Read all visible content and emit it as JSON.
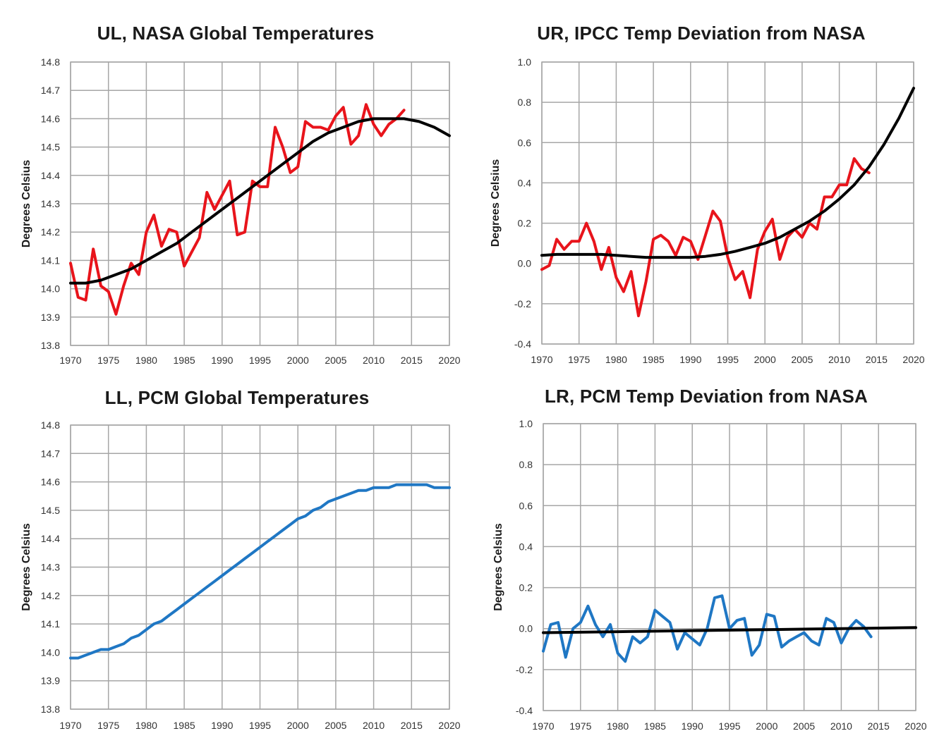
{
  "chart_data": [
    {
      "id": "ul",
      "type": "line",
      "title": "UL, NASA Global Temperatures",
      "ylabel": "Degrees Celsius",
      "xlabel": "",
      "xlim": [
        1970,
        2020
      ],
      "ylim": [
        13.8,
        14.8
      ],
      "xticks": [
        "1970",
        "1975",
        "1980",
        "1985",
        "1990",
        "1995",
        "2000",
        "2005",
        "2010",
        "2015",
        "2020"
      ],
      "yticks": [
        "14.8",
        "14.7",
        "14.6",
        "14.5",
        "14.4",
        "14.3",
        "14.2",
        "14.1",
        "14.0",
        "13.9",
        "13.8"
      ],
      "grid": true,
      "series": [
        {
          "color": "#e8141b",
          "x": [
            1970,
            1971,
            1972,
            1973,
            1974,
            1975,
            1976,
            1977,
            1978,
            1979,
            1980,
            1981,
            1982,
            1983,
            1984,
            1985,
            1986,
            1987,
            1988,
            1989,
            1990,
            1991,
            1992,
            1993,
            1994,
            1995,
            1996,
            1997,
            1998,
            1999,
            2000,
            2001,
            2002,
            2003,
            2004,
            2005,
            2006,
            2007,
            2008,
            2009,
            2010,
            2011,
            2012,
            2013,
            2014
          ],
          "y": [
            14.09,
            13.97,
            13.96,
            14.14,
            14.01,
            13.99,
            13.91,
            14.01,
            14.09,
            14.05,
            14.2,
            14.26,
            14.15,
            14.21,
            14.2,
            14.08,
            14.13,
            14.18,
            14.34,
            14.28,
            14.33,
            14.38,
            14.19,
            14.2,
            14.38,
            14.36,
            14.36,
            14.57,
            14.5,
            14.41,
            14.43,
            14.59,
            14.57,
            14.57,
            14.56,
            14.61,
            14.64,
            14.51,
            14.54,
            14.65,
            14.58,
            14.54,
            14.58,
            14.6,
            14.63
          ]
        },
        {
          "color": "#000000",
          "x": [
            1970,
            1972,
            1974,
            1976,
            1978,
            1980,
            1982,
            1984,
            1986,
            1988,
            1990,
            1992,
            1994,
            1996,
            1998,
            2000,
            2002,
            2004,
            2006,
            2008,
            2010,
            2012,
            2014,
            2016,
            2018,
            2020
          ],
          "y": [
            14.02,
            14.02,
            14.03,
            14.05,
            14.07,
            14.1,
            14.13,
            14.16,
            14.2,
            14.24,
            14.28,
            14.32,
            14.36,
            14.4,
            14.44,
            14.48,
            14.52,
            14.55,
            14.57,
            14.59,
            14.6,
            14.6,
            14.6,
            14.59,
            14.57,
            14.54
          ]
        }
      ]
    },
    {
      "id": "ur",
      "type": "line",
      "title": "UR, IPCC Temp Deviation from NASA",
      "ylabel": "Degrees Celsius",
      "xlabel": "",
      "xlim": [
        1970,
        2020
      ],
      "ylim": [
        -0.4,
        1.0
      ],
      "xticks": [
        "1970",
        "1975",
        "1980",
        "1985",
        "1990",
        "1995",
        "2000",
        "2005",
        "2010",
        "2015",
        "2020"
      ],
      "yticks": [
        "1.0",
        "0.8",
        "0.6",
        "0.4",
        "0.2",
        "0.0",
        "-0.2",
        "-0.4"
      ],
      "grid": true,
      "series": [
        {
          "color": "#e8141b",
          "x": [
            1970,
            1971,
            1972,
            1973,
            1974,
            1975,
            1976,
            1977,
            1978,
            1979,
            1980,
            1981,
            1982,
            1983,
            1984,
            1985,
            1986,
            1987,
            1988,
            1989,
            1990,
            1991,
            1992,
            1993,
            1994,
            1995,
            1996,
            1997,
            1998,
            1999,
            2000,
            2001,
            2002,
            2003,
            2004,
            2005,
            2006,
            2007,
            2008,
            2009,
            2010,
            2011,
            2012,
            2013,
            2014
          ],
          "y": [
            -0.03,
            -0.01,
            0.12,
            0.07,
            0.11,
            0.11,
            0.2,
            0.11,
            -0.03,
            0.08,
            -0.07,
            -0.14,
            -0.04,
            -0.26,
            -0.09,
            0.12,
            0.14,
            0.11,
            0.04,
            0.13,
            0.11,
            0.02,
            0.14,
            0.26,
            0.21,
            0.03,
            -0.08,
            -0.04,
            -0.17,
            0.07,
            0.16,
            0.22,
            0.02,
            0.13,
            0.17,
            0.13,
            0.2,
            0.17,
            0.33,
            0.33,
            0.39,
            0.39,
            0.52,
            0.47,
            0.45
          ]
        },
        {
          "color": "#000000",
          "x": [
            1970,
            1972,
            1974,
            1976,
            1978,
            1980,
            1982,
            1984,
            1986,
            1988,
            1990,
            1992,
            1994,
            1996,
            1998,
            2000,
            2002,
            2004,
            2006,
            2008,
            2010,
            2012,
            2014,
            2016,
            2018,
            2020
          ],
          "y": [
            0.04,
            0.045,
            0.045,
            0.045,
            0.045,
            0.04,
            0.035,
            0.03,
            0.03,
            0.03,
            0.03,
            0.035,
            0.045,
            0.06,
            0.08,
            0.1,
            0.13,
            0.17,
            0.21,
            0.26,
            0.32,
            0.39,
            0.48,
            0.59,
            0.72,
            0.87
          ]
        }
      ]
    },
    {
      "id": "ll",
      "type": "line",
      "title": "LL, PCM Global Temperatures",
      "ylabel": "Degrees Celsius",
      "xlabel": "",
      "xlim": [
        1970,
        2020
      ],
      "ylim": [
        13.8,
        14.8
      ],
      "xticks": [
        "1970",
        "1975",
        "1980",
        "1985",
        "1990",
        "1995",
        "2000",
        "2005",
        "2010",
        "2015",
        "2020"
      ],
      "yticks": [
        "14.8",
        "14.7",
        "14.6",
        "14.5",
        "14.4",
        "14.3",
        "14.2",
        "14.1",
        "14.0",
        "13.9",
        "13.8"
      ],
      "grid": true,
      "series": [
        {
          "color": "#1f77c4",
          "x": [
            1970,
            1971,
            1972,
            1973,
            1974,
            1975,
            1976,
            1977,
            1978,
            1979,
            1980,
            1981,
            1982,
            1983,
            1984,
            1985,
            1986,
            1987,
            1988,
            1989,
            1990,
            1991,
            1992,
            1993,
            1994,
            1995,
            1996,
            1997,
            1998,
            1999,
            2000,
            2001,
            2002,
            2003,
            2004,
            2005,
            2006,
            2007,
            2008,
            2009,
            2010,
            2011,
            2012,
            2013,
            2014,
            2015,
            2016,
            2017,
            2018,
            2019,
            2020
          ],
          "y": [
            13.98,
            13.98,
            13.99,
            14.0,
            14.01,
            14.01,
            14.02,
            14.03,
            14.05,
            14.06,
            14.08,
            14.1,
            14.11,
            14.13,
            14.15,
            14.17,
            14.19,
            14.21,
            14.23,
            14.25,
            14.27,
            14.29,
            14.31,
            14.33,
            14.35,
            14.37,
            14.39,
            14.41,
            14.43,
            14.45,
            14.47,
            14.48,
            14.5,
            14.51,
            14.53,
            14.54,
            14.55,
            14.56,
            14.57,
            14.57,
            14.58,
            14.58,
            14.58,
            14.59,
            14.59,
            14.59,
            14.59,
            14.59,
            14.58,
            14.58,
            14.58
          ]
        }
      ]
    },
    {
      "id": "lr",
      "type": "line",
      "title": "LR, PCM Temp Deviation from NASA",
      "ylabel": "Degrees Celsius",
      "xlabel": "",
      "xlim": [
        1970,
        2020
      ],
      "ylim": [
        -0.4,
        1.0
      ],
      "xticks": [
        "1970",
        "1975",
        "1980",
        "1985",
        "1990",
        "1995",
        "2000",
        "2005",
        "2010",
        "2015",
        "2020"
      ],
      "yticks": [
        "1.0",
        "0.8",
        "0.6",
        "0.4",
        "0.2",
        "0.0",
        "-0.2",
        "-0.4"
      ],
      "grid": true,
      "series": [
        {
          "color": "#1f77c4",
          "x": [
            1970,
            1971,
            1972,
            1973,
            1974,
            1975,
            1976,
            1977,
            1978,
            1979,
            1980,
            1981,
            1982,
            1983,
            1984,
            1985,
            1986,
            1987,
            1988,
            1989,
            1990,
            1991,
            1992,
            1993,
            1994,
            1995,
            1996,
            1997,
            1998,
            1999,
            2000,
            2001,
            2002,
            2003,
            2004,
            2005,
            2006,
            2007,
            2008,
            2009,
            2010,
            2011,
            2012,
            2013,
            2014
          ],
          "y": [
            -0.11,
            0.02,
            0.03,
            -0.14,
            0.0,
            0.03,
            0.11,
            0.02,
            -0.04,
            0.02,
            -0.12,
            -0.16,
            -0.04,
            -0.07,
            -0.04,
            0.09,
            0.06,
            0.03,
            -0.1,
            -0.02,
            -0.05,
            -0.08,
            0.0,
            0.15,
            0.16,
            0.0,
            0.04,
            0.05,
            -0.13,
            -0.08,
            0.07,
            0.06,
            -0.09,
            -0.06,
            -0.04,
            -0.02,
            -0.06,
            -0.08,
            0.05,
            0.03,
            -0.07,
            0.0,
            0.04,
            0.01,
            -0.04
          ]
        },
        {
          "color": "#000000",
          "x": [
            1970,
            1980,
            1990,
            2000,
            2010,
            2020
          ],
          "y": [
            -0.02,
            -0.015,
            -0.01,
            -0.005,
            0.0,
            0.005
          ]
        }
      ]
    }
  ]
}
